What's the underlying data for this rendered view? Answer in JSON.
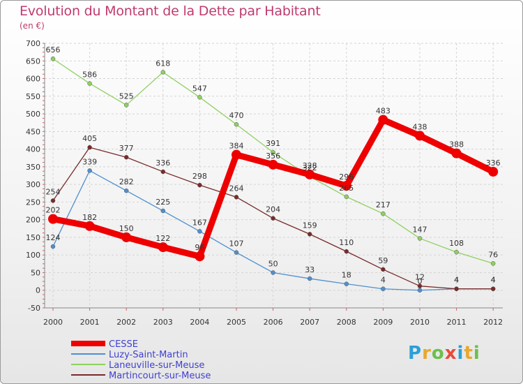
{
  "chart_data": {
    "type": "line",
    "title": "Evolution du Montant de la Dette par Habitant",
    "ylabel": "(en €)",
    "xlabel": "",
    "categories": [
      "2000",
      "2001",
      "2002",
      "2003",
      "2004",
      "2005",
      "2006",
      "2007",
      "2008",
      "2009",
      "2010",
      "2011",
      "2012"
    ],
    "ylim": [
      -50,
      700
    ],
    "yticks": [
      -50,
      0,
      50,
      100,
      150,
      200,
      250,
      300,
      350,
      400,
      450,
      500,
      550,
      600,
      650,
      700
    ],
    "series": [
      {
        "name": "Luzy-Saint-Martin",
        "color": "#4f8fcf",
        "values": [
          124,
          339,
          282,
          225,
          167,
          107,
          50,
          33,
          18,
          4,
          0,
          4,
          4
        ],
        "labels": [
          "124",
          "339",
          "282",
          "225",
          "167",
          "107",
          "50",
          "33",
          "18",
          "4",
          "0",
          "4",
          "4"
        ]
      },
      {
        "name": "Laneuville-sur-Meuse",
        "color": "#8fd060",
        "values": [
          656,
          586,
          525,
          618,
          547,
          470,
          391,
          322,
          265,
          217,
          147,
          108,
          76
        ],
        "labels": [
          "656",
          "586",
          "525",
          "618",
          "547",
          "470",
          "391",
          "322",
          "265",
          "217",
          "147",
          "108",
          "76"
        ]
      },
      {
        "name": "Martincourt-sur-Meuse",
        "color": "#7a2a2a",
        "values": [
          254,
          405,
          377,
          336,
          298,
          264,
          204,
          159,
          110,
          59,
          12,
          4,
          4
        ],
        "labels": [
          "254",
          "405",
          "377",
          "336",
          "298",
          "264",
          "204",
          "159",
          "110",
          "59",
          "12",
          "4",
          "4"
        ]
      },
      {
        "name": "CESSE",
        "color": "#ee0000",
        "values": [
          202,
          182,
          150,
          122,
          96,
          384,
          356,
          328,
          296,
          483,
          438,
          388,
          336
        ],
        "labels": [
          "202",
          "182",
          "150",
          "122",
          "96",
          "384",
          "356",
          "328",
          "296",
          "483",
          "438",
          "388",
          "336"
        ]
      }
    ],
    "legend": {
      "position": "bottom-left",
      "order": [
        "CESSE",
        "Luzy-Saint-Martin",
        "Laneuville-sur-Meuse",
        "Martincourt-sur-Meuse"
      ]
    }
  },
  "brand": {
    "logo_text": "Proxiti",
    "letters": [
      "P",
      "r",
      "o",
      "x",
      "i",
      "t",
      "i"
    ]
  }
}
